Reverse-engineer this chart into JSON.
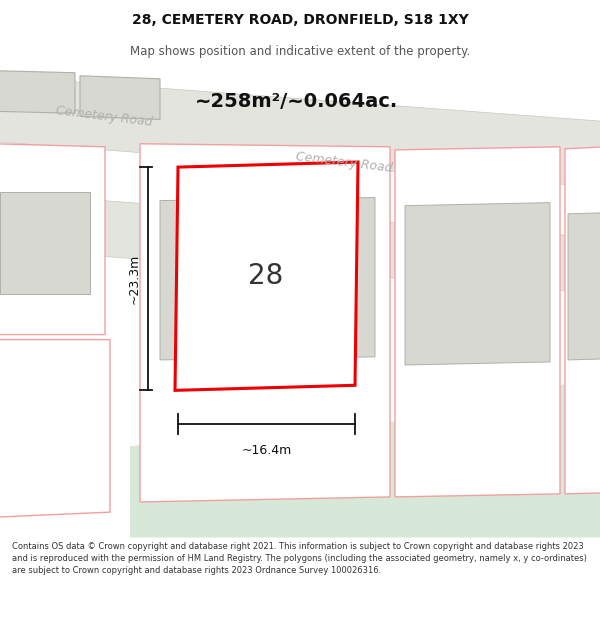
{
  "title": "28, CEMETERY ROAD, DRONFIELD, S18 1XY",
  "subtitle": "Map shows position and indicative extent of the property.",
  "footer": "Contains OS data © Crown copyright and database right 2021. This information is subject to Crown copyright and database rights 2023 and is reproduced with the permission of HM Land Registry. The polygons (including the associated geometry, namely x, y co-ordinates) are subject to Crown copyright and database rights 2023 Ordnance Survey 100026316.",
  "area_label": "~258m²/~0.064ac.",
  "width_label": "~16.4m",
  "height_label": "~23.3m",
  "house_number": "28",
  "map_bg": "#f2f2ee",
  "road_fill": "#e4e4de",
  "building_fill": "#d8d8d2",
  "building_border": "#b0b0a8",
  "green_fill": "#d8e8d8",
  "red_outline": "#ee0000",
  "pink_outline": "#f0a0a0",
  "dim_color": "#111111",
  "road_label_color": "#b0b0b0",
  "title_color": "#111111",
  "subtitle_color": "#555555",
  "footer_color": "#333333"
}
